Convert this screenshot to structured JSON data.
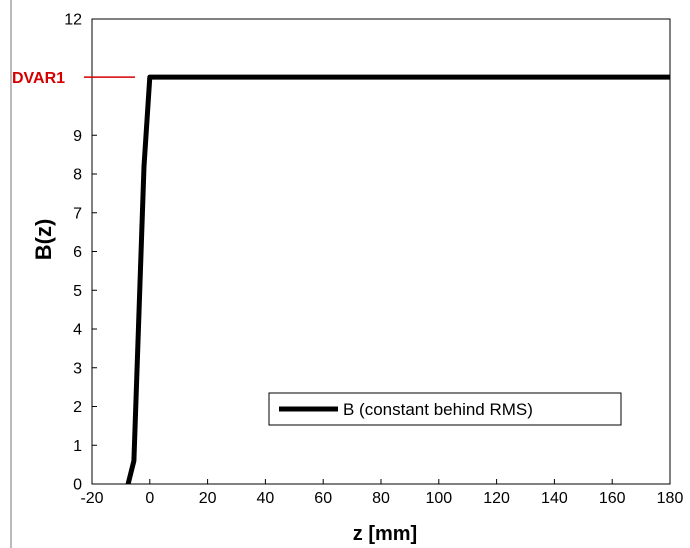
{
  "chart_data": {
    "type": "line",
    "title": "",
    "xlabel": "z [mm]",
    "ylabel": "B(z)",
    "xlim": [
      -20,
      180
    ],
    "ylim": [
      0,
      12
    ],
    "x_ticks": [
      -20,
      0,
      20,
      40,
      60,
      80,
      100,
      120,
      140,
      160,
      180
    ],
    "y_ticks": [
      0,
      1,
      2,
      3,
      4,
      5,
      6,
      7,
      8,
      9,
      12
    ],
    "grid": false,
    "legend_position": "bottom-right",
    "series": [
      {
        "name": "B (constant behind RMS)",
        "color": "#000000",
        "x": [
          -7.5,
          -5.5,
          -2,
          0,
          180
        ],
        "y": [
          0,
          0.6,
          8.2,
          10.5,
          10.5
        ]
      }
    ],
    "annotations": [
      {
        "text": "DVAR1",
        "y": 10.5,
        "color": "#d40000"
      }
    ]
  }
}
